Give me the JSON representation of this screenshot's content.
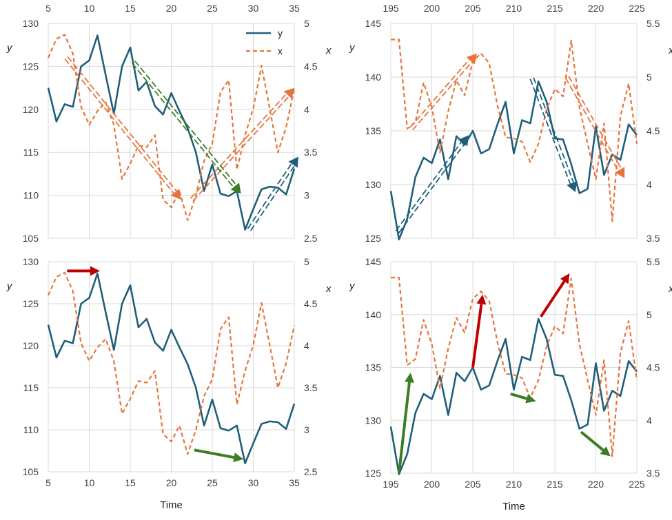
{
  "colors": {
    "y_series": "#1f5f7a",
    "x_series": "#e8743b",
    "green_arrow": "#3a7d22",
    "red_arrow": "#c00000",
    "grid": "#d9d9d9"
  },
  "chart_data": [
    {
      "id": "top-left",
      "type": "line",
      "title": "",
      "xlabel": "",
      "ylabel": "y",
      "y2label": "x",
      "xaxis_position": "top",
      "xlim": [
        5,
        35
      ],
      "ylim": [
        105,
        130
      ],
      "y2lim": [
        2.5,
        5
      ],
      "xticks": [
        "5",
        "10",
        "15",
        "20",
        "25",
        "30",
        "35"
      ],
      "yticks": [
        "105",
        "110",
        "115",
        "120",
        "125",
        "130"
      ],
      "y2ticks": [
        "2.5",
        "3",
        "3.5",
        "4",
        "4.5",
        "5"
      ],
      "legend": {
        "position": "top-right",
        "entries": [
          "y",
          "x"
        ]
      },
      "grid": true,
      "x": [
        5,
        6,
        7,
        8,
        9,
        10,
        11,
        12,
        13,
        14,
        15,
        16,
        17,
        18,
        19,
        20,
        21,
        22,
        23,
        24,
        25,
        26,
        27,
        28,
        29,
        30,
        31,
        32,
        33,
        34,
        35
      ],
      "series": [
        {
          "name": "y",
          "axis": "left",
          "style": "solid",
          "values": [
            122.5,
            118.6,
            120.6,
            120.3,
            125.0,
            125.7,
            128.6,
            124.0,
            119.5,
            125.0,
            127.2,
            122.2,
            123.2,
            120.4,
            119.4,
            121.9,
            119.8,
            117.8,
            115.0,
            110.5,
            113.6,
            110.2,
            109.9,
            110.5,
            106.0,
            108.4,
            110.7,
            111.0,
            110.9,
            110.1,
            113.1
          ]
        },
        {
          "name": "x",
          "axis": "right",
          "style": "dashed",
          "values": [
            4.6,
            4.82,
            4.87,
            4.65,
            4.03,
            3.82,
            3.98,
            4.08,
            3.82,
            3.19,
            3.37,
            3.58,
            3.56,
            3.7,
            2.95,
            2.86,
            3.05,
            2.71,
            3.0,
            3.4,
            3.6,
            4.2,
            4.34,
            3.3,
            3.7,
            4.01,
            4.51,
            4.01,
            3.5,
            3.79,
            4.24
          ]
        }
      ],
      "arrows": [
        {
          "kind": "double-dashed",
          "color": "orange",
          "from": [
            7.2,
            4.6
          ],
          "to": [
            21.2,
            2.95
          ]
        },
        {
          "kind": "double-dashed",
          "color": "orange",
          "from": [
            22.5,
            2.95
          ],
          "to": [
            35,
            4.25
          ]
        },
        {
          "kind": "double-dashed",
          "color": "green",
          "from": [
            15.4,
            125.5
          ],
          "to": [
            28.5,
            110.2
          ]
        },
        {
          "kind": "double-dashed",
          "color": "blue",
          "from": [
            29.5,
            106.0
          ],
          "to": [
            35.5,
            114.5
          ]
        }
      ]
    },
    {
      "id": "top-right",
      "type": "line",
      "title": "",
      "xlabel": "",
      "ylabel": "y",
      "y2label": "x",
      "xaxis_position": "top",
      "xlim": [
        195,
        225
      ],
      "ylim": [
        125,
        145
      ],
      "y2lim": [
        3.5,
        5.5
      ],
      "xticks": [
        "195",
        "200",
        "205",
        "210",
        "215",
        "220",
        "225"
      ],
      "yticks": [
        "125",
        "130",
        "135",
        "140",
        "145"
      ],
      "y2ticks": [
        "3.5",
        "4",
        "4.5",
        "5",
        "5.5"
      ],
      "grid": true,
      "x": [
        195,
        196,
        197,
        198,
        199,
        200,
        201,
        202,
        203,
        204,
        205,
        206,
        207,
        208,
        209,
        210,
        211,
        212,
        213,
        214,
        215,
        216,
        217,
        218,
        219,
        220,
        221,
        222,
        223,
        224,
        225
      ],
      "series": [
        {
          "name": "y",
          "axis": "left",
          "style": "solid",
          "values": [
            129.4,
            124.9,
            126.8,
            130.7,
            132.5,
            132.0,
            134.2,
            130.5,
            134.5,
            133.7,
            135.0,
            132.9,
            133.3,
            135.6,
            137.7,
            132.9,
            136.0,
            135.7,
            139.6,
            137.7,
            134.3,
            134.2,
            131.9,
            129.2,
            129.6,
            135.4,
            130.9,
            132.8,
            132.3,
            135.6,
            134.6
          ]
        },
        {
          "name": "x",
          "axis": "right",
          "style": "dashed",
          "values": [
            5.35,
            5.35,
            4.52,
            4.58,
            4.95,
            4.72,
            4.3,
            4.68,
            4.97,
            4.83,
            5.15,
            5.22,
            5.13,
            4.74,
            4.44,
            4.43,
            4.4,
            4.21,
            4.38,
            4.7,
            4.89,
            4.82,
            5.34,
            4.72,
            4.38,
            4.05,
            4.57,
            3.66,
            4.64,
            4.94,
            4.38
          ]
        }
      ],
      "arrows": [
        {
          "kind": "double-dashed",
          "color": "orange",
          "from": [
            197.5,
            4.52
          ],
          "to": [
            205.5,
            5.22
          ]
        },
        {
          "kind": "double-dashed",
          "color": "orange",
          "from": [
            216.5,
            5.0
          ],
          "to": [
            223.5,
            4.06
          ]
        },
        {
          "kind": "double-dashed",
          "color": "blue",
          "from": [
            195.8,
            125.6
          ],
          "to": [
            204.5,
            134.6
          ]
        },
        {
          "kind": "double-dashed",
          "color": "blue",
          "from": [
            212.2,
            139.9
          ],
          "to": [
            217.5,
            129.3
          ]
        }
      ]
    },
    {
      "id": "bottom-left",
      "type": "line",
      "title": "",
      "xlabel": "Time",
      "ylabel": "y",
      "y2label": "x",
      "xaxis_position": "bottom",
      "xlim": [
        5,
        35
      ],
      "ylim": [
        105,
        130
      ],
      "y2lim": [
        2.5,
        5
      ],
      "xticks": [
        "5",
        "10",
        "15",
        "20",
        "25",
        "30",
        "35"
      ],
      "yticks": [
        "105",
        "110",
        "115",
        "120",
        "125",
        "130"
      ],
      "y2ticks": [
        "2.5",
        "3",
        "3.5",
        "4",
        "4.5",
        "5"
      ],
      "grid": true,
      "x": [
        5,
        6,
        7,
        8,
        9,
        10,
        11,
        12,
        13,
        14,
        15,
        16,
        17,
        18,
        19,
        20,
        21,
        22,
        23,
        24,
        25,
        26,
        27,
        28,
        29,
        30,
        31,
        32,
        33,
        34,
        35
      ],
      "series": [
        {
          "name": "y",
          "axis": "left",
          "style": "solid",
          "values": [
            122.5,
            118.6,
            120.6,
            120.3,
            125.0,
            125.7,
            128.6,
            124.0,
            119.5,
            125.0,
            127.2,
            122.2,
            123.2,
            120.4,
            119.4,
            121.9,
            119.8,
            117.8,
            115.0,
            110.5,
            113.6,
            110.2,
            109.9,
            110.5,
            106.0,
            108.4,
            110.7,
            111.0,
            110.9,
            110.1,
            113.1
          ]
        },
        {
          "name": "x",
          "axis": "right",
          "style": "dashed",
          "values": [
            4.6,
            4.82,
            4.87,
            4.65,
            4.03,
            3.82,
            3.98,
            4.08,
            3.82,
            3.19,
            3.37,
            3.58,
            3.56,
            3.7,
            2.95,
            2.86,
            3.05,
            2.71,
            3.0,
            3.4,
            3.6,
            4.2,
            4.34,
            3.3,
            3.7,
            4.01,
            4.51,
            4.01,
            3.5,
            3.79,
            4.24
          ]
        }
      ],
      "arrows": [
        {
          "kind": "solid",
          "color": "red",
          "from": [
            7.3,
            128.9
          ],
          "to": [
            11.3,
            128.9
          ]
        },
        {
          "kind": "solid",
          "color": "green",
          "from": [
            22.8,
            107.6
          ],
          "to": [
            28.8,
            106.5
          ]
        }
      ]
    },
    {
      "id": "bottom-right",
      "type": "line",
      "title": "",
      "xlabel": "Time",
      "ylabel": "y",
      "y2label": "x",
      "xaxis_position": "bottom",
      "xlim": [
        195,
        225
      ],
      "ylim": [
        125,
        145
      ],
      "y2lim": [
        3.5,
        5.5
      ],
      "xticks": [
        "195",
        "200",
        "205",
        "210",
        "215",
        "220",
        "225"
      ],
      "yticks": [
        "125",
        "130",
        "135",
        "140",
        "145"
      ],
      "y2ticks": [
        "3.5",
        "4",
        "4.5",
        "5",
        "5.5"
      ],
      "grid": true,
      "x": [
        195,
        196,
        197,
        198,
        199,
        200,
        201,
        202,
        203,
        204,
        205,
        206,
        207,
        208,
        209,
        210,
        211,
        212,
        213,
        214,
        215,
        216,
        217,
        218,
        219,
        220,
        221,
        222,
        223,
        224,
        225
      ],
      "series": [
        {
          "name": "y",
          "axis": "left",
          "style": "solid",
          "values": [
            129.4,
            124.9,
            126.8,
            130.7,
            132.5,
            132.0,
            134.2,
            130.5,
            134.5,
            133.7,
            135.0,
            132.9,
            133.3,
            135.6,
            137.7,
            132.9,
            136.0,
            135.7,
            139.6,
            137.7,
            134.3,
            134.2,
            131.9,
            129.2,
            129.6,
            135.4,
            130.9,
            132.8,
            132.3,
            135.6,
            134.6
          ]
        },
        {
          "name": "x",
          "axis": "right",
          "style": "dashed",
          "values": [
            5.35,
            5.35,
            4.52,
            4.58,
            4.95,
            4.72,
            4.3,
            4.68,
            4.97,
            4.83,
            5.15,
            5.22,
            5.13,
            4.74,
            4.44,
            4.43,
            4.4,
            4.21,
            4.38,
            4.7,
            4.89,
            4.82,
            5.34,
            4.72,
            4.38,
            4.05,
            4.57,
            3.66,
            4.64,
            4.94,
            4.38
          ]
        }
      ],
      "arrows": [
        {
          "kind": "solid",
          "color": "green",
          "from": [
            196.0,
            125.0
          ],
          "to": [
            197.4,
            134.5
          ]
        },
        {
          "kind": "solid",
          "color": "red",
          "from": [
            205.0,
            135.0
          ],
          "to": [
            206.2,
            141.9
          ]
        },
        {
          "kind": "solid",
          "color": "green",
          "from": [
            209.6,
            132.5
          ],
          "to": [
            212.7,
            131.8
          ]
        },
        {
          "kind": "solid",
          "color": "red",
          "from": [
            213.3,
            139.8
          ],
          "to": [
            216.8,
            143.9
          ]
        },
        {
          "kind": "solid",
          "color": "green",
          "from": [
            218.2,
            128.9
          ],
          "to": [
            221.8,
            126.6
          ]
        }
      ]
    }
  ]
}
